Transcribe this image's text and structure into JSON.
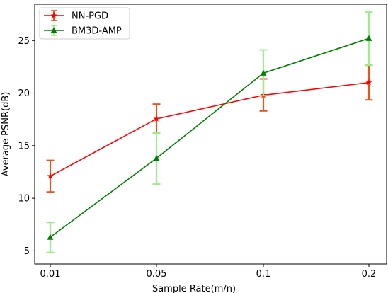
{
  "chart_data": {
    "type": "line",
    "title": "",
    "xlabel": "Sample Rate(m/n)",
    "ylabel": "Average PSNR(dB)",
    "categories": [
      "0.01",
      "0.05",
      "0.1",
      "0.2"
    ],
    "ylim": [
      3.75,
      28.45
    ],
    "yticks": [
      5,
      10,
      15,
      20,
      25
    ],
    "grid": false,
    "legend_position": "top-left",
    "series": [
      {
        "name": "NN-PGD",
        "values": [
          12.1,
          17.55,
          19.8,
          21.0
        ],
        "err_low": [
          10.6,
          16.2,
          18.3,
          19.35
        ],
        "err_high": [
          13.6,
          18.95,
          21.35,
          22.65
        ],
        "line_color": "#ff0000",
        "errorbar_color": "#e8541a",
        "marker": "star"
      },
      {
        "name": "BM3D-AMP",
        "values": [
          6.3,
          13.8,
          21.9,
          25.2
        ],
        "err_low": [
          4.85,
          11.35,
          19.75,
          22.65
        ],
        "err_high": [
          7.7,
          16.2,
          24.1,
          27.7
        ],
        "line_color": "#008000",
        "errorbar_color": "#99ee88",
        "marker": "triangle"
      }
    ]
  }
}
